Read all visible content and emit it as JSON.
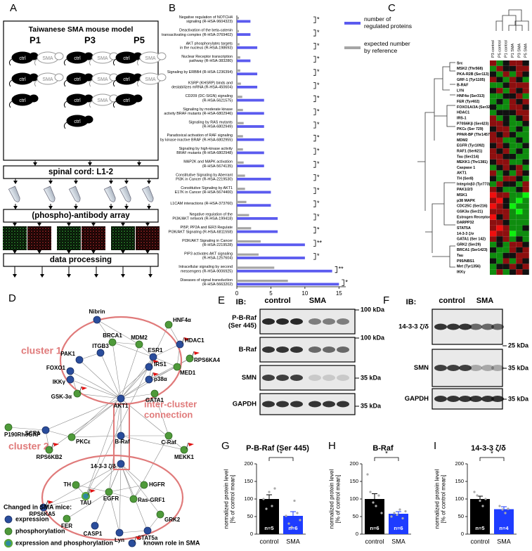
{
  "panel_labels": [
    "A",
    "B",
    "C",
    "D",
    "E",
    "F",
    "G",
    "H",
    "I"
  ],
  "workflow": {
    "title": "Taiwanese SMA mouse model",
    "timepoints": [
      "P1",
      "P3",
      "P5"
    ],
    "mouse_labels": [
      "ctrl",
      "SMA"
    ],
    "steps": [
      "spinal cord: L1-2",
      "(phospho)-antibody array",
      "data processing"
    ]
  },
  "heatmap": {
    "columns": [
      "P3 control",
      "P5 control",
      "P1 control",
      "P1 SMA",
      "P3 SMA",
      "P5 SMA"
    ],
    "rows": [
      "Src",
      "MSK2 (Thr568)",
      "PKA-R2B (Ser113)",
      "GRF-1 (Tyr1105)",
      "B-RAF",
      "LYN",
      "HNF4α (Ser313)",
      "FER (Tyr402)",
      "FOXO1A/3A (Ser322/321)",
      "HDAC1",
      "IRS-1",
      "P70S6Kβ (Ser423)",
      "PKCε (Ser 729)",
      "PPAR-BP (Thr1457)",
      "MDM2",
      "EGFR (Tyr1092)",
      "RAF1 (Ser621)",
      "Tau (Ser214)",
      "MEKK1 (Thr1381)",
      "Caspase 1",
      "AKT1",
      "TH (Ser8)",
      "Integrinβ3 (Tyr773)",
      "PAK1/2/3",
      "MSK1",
      "p38 MAPK",
      "CDC25C (Ser216)",
      "GSK3α (Ser21)",
      "Estrogen Receptor-α",
      "DARPP32",
      "STAT5A",
      "14-3-3 ζ/σ",
      "GATA1 (Ser 142)",
      "GRK2 (Ser29)",
      "BRCA1 (Ser1423)",
      "Tau",
      "P95/NBS1",
      "Met (Tyr1356)",
      "IKKγ"
    ],
    "values": [
      [
        1,
        -1,
        0,
        1,
        1,
        0
      ],
      [
        -1,
        1,
        0,
        0,
        1,
        1
      ],
      [
        0,
        -1,
        1,
        -1,
        1,
        0
      ],
      [
        1,
        0,
        -1,
        1,
        0,
        -1
      ],
      [
        -1,
        -1,
        0,
        1,
        1,
        1
      ],
      [
        0,
        1,
        -1,
        1,
        0,
        1
      ],
      [
        -1,
        -1,
        0,
        0,
        1,
        -1
      ],
      [
        -1,
        0,
        -1,
        1,
        0,
        1
      ],
      [
        0,
        -1,
        -1,
        1,
        1,
        0
      ],
      [
        -1,
        0,
        0,
        0,
        1,
        1
      ],
      [
        1,
        -1,
        0,
        -1,
        0,
        1
      ],
      [
        1,
        1,
        0,
        -1,
        -1,
        0
      ],
      [
        0,
        1,
        1,
        -1,
        0,
        -1
      ],
      [
        1,
        0,
        1,
        0,
        -1,
        -1
      ],
      [
        1,
        1,
        -1,
        -1,
        0,
        -1
      ],
      [
        0,
        1,
        0,
        -1,
        -1,
        0
      ],
      [
        1,
        0,
        1,
        -1,
        0,
        -1
      ],
      [
        1,
        1,
        0,
        0,
        -1,
        -1
      ],
      [
        0,
        1,
        1,
        -1,
        -1,
        0
      ],
      [
        -1,
        0,
        1,
        0,
        1,
        -1
      ],
      [
        1,
        -1,
        0,
        -1,
        1,
        0
      ],
      [
        0,
        -1,
        1,
        1,
        0,
        -1
      ],
      [
        -1,
        1,
        0,
        0,
        -1,
        1
      ],
      [
        1,
        0,
        -1,
        -1,
        0,
        1
      ],
      [
        2,
        1,
        1,
        -1,
        -1,
        -2
      ],
      [
        1,
        2,
        0,
        -1,
        -2,
        -1
      ],
      [
        2,
        1,
        0,
        -2,
        -1,
        -1
      ],
      [
        1,
        1,
        1,
        -1,
        -2,
        -1
      ],
      [
        2,
        0,
        1,
        -1,
        -1,
        -1
      ],
      [
        1,
        1,
        0,
        -1,
        -1,
        -1
      ],
      [
        1,
        2,
        1,
        -1,
        -1,
        0
      ],
      [
        2,
        1,
        1,
        -2,
        -1,
        -1
      ],
      [
        1,
        0,
        1,
        -1,
        0,
        -1
      ],
      [
        -1,
        0,
        -1,
        1,
        1,
        0
      ],
      [
        0,
        -1,
        -1,
        1,
        0,
        1
      ],
      [
        -1,
        -1,
        0,
        0,
        1,
        1
      ],
      [
        0,
        -1,
        1,
        -1,
        1,
        0
      ],
      [
        -1,
        0,
        0,
        1,
        0,
        1
      ],
      [
        -1,
        1,
        -1,
        0,
        1,
        0
      ]
    ]
  },
  "network": {
    "nodes": [
      {
        "label": "Nibrin",
        "change": "expression",
        "known_role": false
      },
      {
        "label": "HNF4α",
        "change": "phosphorylation",
        "known_role": false
      },
      {
        "label": "HDAC1",
        "change": "expression",
        "known_role": true
      },
      {
        "label": "BRCA1",
        "change": "phosphorylation",
        "known_role": false
      },
      {
        "label": "MDM2",
        "change": "phosphorylation",
        "known_role": false
      },
      {
        "label": "ITGB3",
        "change": "expression",
        "known_role": false
      },
      {
        "label": "PAK1",
        "change": "expression",
        "known_role": false
      },
      {
        "label": "ESR1",
        "change": "expression",
        "known_role": false
      },
      {
        "label": "IRS1",
        "change": "expression",
        "known_role": true
      },
      {
        "label": "FOXO1",
        "change": "expression",
        "known_role": false
      },
      {
        "label": "IKKγ",
        "change": "expression",
        "known_role": false
      },
      {
        "label": "p38α",
        "change": "expression",
        "known_role": true
      },
      {
        "label": "RPS6KA4",
        "change": "phosphorylation",
        "known_role": true
      },
      {
        "label": "MED1",
        "change": "phosphorylation",
        "known_role": false
      },
      {
        "label": "GSK-3α",
        "change": "phosphorylation",
        "known_role": true
      },
      {
        "label": "GATA1",
        "change": "phosphorylation",
        "known_role": false
      },
      {
        "label": "AKT1",
        "change": "expression",
        "known_role": false
      },
      {
        "label": "P190RhoGAP",
        "change": "phosphorylation",
        "known_role": false
      },
      {
        "label": "SCR1",
        "change": "expression",
        "known_role": false
      },
      {
        "label": "PKCε",
        "change": "phosphorylation",
        "known_role": false
      },
      {
        "label": "B-Raf",
        "change": "expression",
        "known_role": false
      },
      {
        "label": "C-Raf",
        "change": "phosphorylation",
        "known_role": false
      },
      {
        "label": "RPS6KB2",
        "change": "phosphorylation",
        "known_role": true
      },
      {
        "label": "MEKK1",
        "change": "phosphorylation",
        "known_role": true
      },
      {
        "label": "14-3-3 ζ/δ",
        "change": "expression",
        "known_role": false
      },
      {
        "label": "TH",
        "change": "phosphorylation",
        "known_role": false
      },
      {
        "label": "TAU",
        "change": "expression and phosphorylation",
        "known_role": true
      },
      {
        "label": "EGFR",
        "change": "phosphorylation",
        "known_role": false
      },
      {
        "label": "HGFR",
        "change": "phosphorylation",
        "known_role": false
      },
      {
        "label": "Ras-GRF1",
        "change": "phosphorylation",
        "known_role": false
      },
      {
        "label": "RPS6KA5",
        "change": "expression",
        "known_role": true
      },
      {
        "label": "FER",
        "change": "phosphorylation",
        "known_role": false
      },
      {
        "label": "CASP1",
        "change": "expression",
        "known_role": false
      },
      {
        "label": "Lyn",
        "change": "expression",
        "known_role": false
      },
      {
        "label": "STAT5a",
        "change": "expression",
        "known_role": false
      },
      {
        "label": "GRK2",
        "change": "phosphorylation",
        "known_role": false
      }
    ],
    "clusters": [
      "cluster 1",
      "cluster 2",
      "inter-cluster\nconnection"
    ],
    "legend": {
      "title": "Changed in SMA mice:",
      "items": [
        "expression",
        "phosphorylation",
        "expression and phosphorylation",
        "known role in SMA"
      ]
    }
  },
  "blots": [
    {
      "ib": "IB:",
      "lanes": [
        "control",
        "SMA"
      ],
      "rows": [
        "P-B-Raf\n(Ser 445)",
        "B-Raf",
        "SMN",
        "GAPDH"
      ],
      "markers": [
        "100 kDa",
        "100 kDa",
        "35 kDa",
        "35 kDa"
      ]
    },
    {
      "ib": "IB:",
      "lanes": [
        "control",
        "SMA"
      ],
      "rows": [
        "14-3-3 ζ/δ",
        "SMN",
        "GAPDH"
      ],
      "markers": [
        "25 kDa",
        "35 kDa",
        "35 kDa"
      ]
    }
  ],
  "chart_data": [
    {
      "type": "hbar",
      "categories": [
        "Negative regulation of NOTCH4\nsignaling (R-HSA-9604323)",
        "Deactivation of the beta-catenin\ntransactivating complex (R-HSA-3769402)",
        "AKT phosphorylates targets\nin the nucleus (R-HSA-198693)",
        "Nuclear Receptor transcription\npathway (R-HSA-383280)",
        "Signaling by ERBB4 (R-HSA-1236394)",
        "KSRP (KHSRP) binds and\ndestabilizes mRNA (R-HSA-450604)",
        "CD209 (DC-SIGN) signaling\n(R-HSA-5621575)",
        "Signaling by moderate kinase\nactivity BRAF mutants (R-HSA-6802946)",
        "Signaling by RAS mutants\n(R-HSA-6802949)",
        "Paradoxical activation of RAF signaling\nby kinase inactive BRAF (R-HSA-6802955)",
        "Signaling by high-kinase activity\nBRAF mutants (R-HSA-6802948)",
        "MAP2K and MAPK activation\n(R-HSA-5674135)",
        "Constitutive Signaling by Aberrant\nPI3K in Cancer (R-HSA-2219530)",
        "Constitutive Signaling by AKT1\nE17K in Cancer (R-HSA-5674400)",
        "L1CAM interactions (R-HSA-373760)",
        "Negative regulation of the\nPI3K/AKT network (R-HSA-199418)",
        "PI5P, PP2A and IER3 Regulate\nPI3K/AKT Signaling (R-HSA-6811558)",
        "PI3K/AKT Signaling in Cancer\n(R-HSA-2219528)",
        "PIP3 activates AKT signaling\n(R-HSA-1257604)",
        "Intracellular signaling by second\nmessengers (R-HSA-9006925)",
        "Diseases of signal transduction\n(R-HSA-5663202)"
      ],
      "series": [
        {
          "name": "number of\nregulated proteins",
          "color": "#5b5bef",
          "values": [
            2,
            2,
            3,
            2,
            3,
            3,
            4,
            4,
            4,
            4,
            4,
            4,
            5,
            5,
            5,
            6,
            6,
            10,
            10,
            14,
            15
          ]
        },
        {
          "name": "expected number\nby reference",
          "color": "#a5a5a5",
          "values": [
            0.3,
            0.3,
            0.4,
            0.5,
            0.5,
            0.6,
            0.8,
            0.9,
            1,
            0.9,
            0.9,
            1,
            1.2,
            1.2,
            1.4,
            1.8,
            2.1,
            3.5,
            3.2,
            5.5,
            7.5
          ]
        }
      ],
      "significance": [
        "*",
        "*",
        "*",
        "*",
        "*",
        "*",
        "*",
        "*",
        "*",
        "*",
        "*",
        "*",
        "*",
        "*",
        "*",
        "*",
        "*",
        "**",
        "*",
        "**",
        "*"
      ],
      "xlim": [
        0,
        16
      ],
      "xticks": [
        0,
        5,
        10,
        15
      ]
    },
    {
      "type": "bar",
      "title": "P-B-Raf (Ser 445)",
      "ylabel": "normalized protein level\n[% of control mean]",
      "categories": [
        "control",
        "SMA"
      ],
      "values": [
        100,
        52
      ],
      "errors": [
        12,
        12
      ],
      "colors": [
        "#000000",
        "#1e3cff"
      ],
      "n_labels": [
        "n=5",
        "n=6"
      ],
      "points": [
        [
          100,
          72,
          120,
          80,
          130
        ],
        [
          52,
          30,
          20,
          95,
          60,
          40
        ]
      ],
      "significance": "*",
      "ylim": [
        0,
        200
      ],
      "yticks": [
        0,
        50,
        100,
        150,
        200
      ]
    },
    {
      "type": "bar",
      "title": "B-Raf",
      "ylabel": "normalized protein level\n[% of control mean]",
      "categories": [
        "control",
        "SMA"
      ],
      "values": [
        100,
        58
      ],
      "errors": [
        15,
        6
      ],
      "colors": [
        "#000000",
        "#1e3cff"
      ],
      "n_labels": [
        "n=6",
        "n=6"
      ],
      "points": [
        [
          170,
          120,
          90,
          80,
          110,
          60
        ],
        [
          50,
          60,
          55,
          70,
          45,
          65
        ]
      ],
      "significance": "*",
      "ylim": [
        0,
        200
      ],
      "yticks": [
        0,
        50,
        100,
        150,
        200
      ]
    },
    {
      "type": "bar",
      "title": "14-3-3 ζ/δ",
      "ylabel": "normalized protein level\n[% of control mean]",
      "categories": [
        "control",
        "SMA"
      ],
      "values": [
        100,
        71
      ],
      "errors": [
        8,
        7
      ],
      "colors": [
        "#000000",
        "#1e3cff"
      ],
      "n_labels": [
        "n=5",
        "n=4"
      ],
      "points": [
        [
          120,
          110,
          95,
          80,
          100
        ],
        [
          80,
          70,
          60,
          72
        ]
      ],
      "significance": "*",
      "ylim": [
        0,
        200
      ],
      "yticks": [
        0,
        50,
        100,
        150,
        200
      ]
    }
  ]
}
